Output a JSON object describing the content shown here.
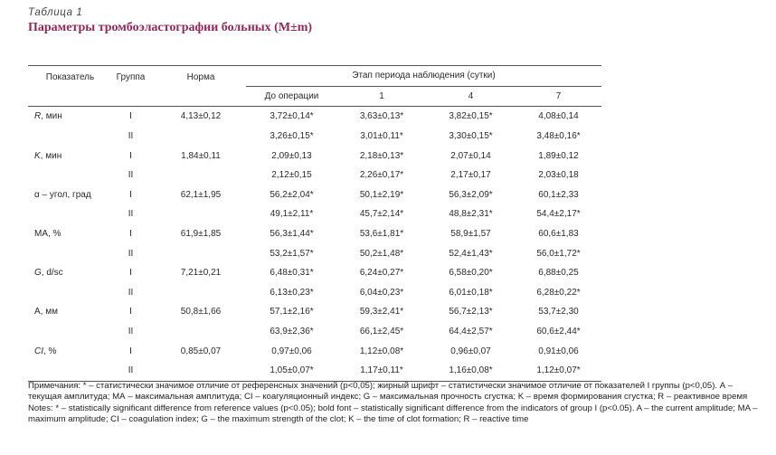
{
  "caption": {
    "label": "Таблица 1",
    "title": "Параметры тромбоэластографии больных (M±m)"
  },
  "header": {
    "param": "Показатель",
    "group": "Группа",
    "norm": "Норма",
    "stage": "Этап периода наблюдения (сутки)",
    "stages": [
      "До операции",
      "1",
      "4",
      "7"
    ]
  },
  "rows": [
    {
      "param": "R, мин",
      "italic_part": "R",
      "rest": ", мин",
      "norm": "4,13±0,12",
      "g1": {
        "group": "I",
        "values": [
          "3,72±0,14*",
          "3,63±0,13*",
          "3,82±0,15*",
          "4,08±0,14"
        ],
        "bold": [
          false,
          false,
          false,
          false
        ]
      },
      "g2": {
        "group": "II",
        "values": [
          "3,26±0,15*",
          "3,01±0,11*",
          "3,30±0,15*",
          "3,48±0,16*"
        ],
        "bold": [
          true,
          true,
          true,
          true
        ]
      }
    },
    {
      "param": "K, мин",
      "italic_part": "K",
      "rest": ", мин",
      "norm": "1,84±0,11",
      "g1": {
        "group": "I",
        "values": [
          "2,09±0,13",
          "2,18±0,13*",
          "2,07±0,14",
          "1,89±0,12"
        ],
        "bold": [
          false,
          false,
          false,
          false
        ]
      },
      "g2": {
        "group": "II",
        "values": [
          "2,12±0,15",
          "2,26±0,17*",
          "2,17±0,17",
          "2,03±0,18"
        ],
        "bold": [
          false,
          false,
          false,
          false
        ]
      }
    },
    {
      "param": "α – угол, град",
      "italic_part": "",
      "rest": "α – угол, град",
      "norm": "62,1±1,95",
      "g1": {
        "group": "I",
        "values": [
          "56,2±2,04*",
          "50,1±2,19*",
          "56,3±2,09*",
          "60,1±2,33"
        ],
        "bold": [
          false,
          false,
          false,
          false
        ]
      },
      "g2": {
        "group": "II",
        "values": [
          "49,1±2,11*",
          "45,7±2,14*",
          "48,8±2,31*",
          "54,4±2,17*"
        ],
        "bold": [
          true,
          true,
          true,
          true
        ]
      }
    },
    {
      "param": "МА, %",
      "italic_part": "",
      "rest": "МА, %",
      "norm": "61,9±1,85",
      "g1": {
        "group": "I",
        "values": [
          "56,3±1,44*",
          "53,6±1,81*",
          "58,9±1,57",
          "60,6±1,83"
        ],
        "bold": [
          false,
          false,
          false,
          false
        ]
      },
      "g2": {
        "group": "II",
        "values": [
          "53,2±1,57*",
          "50,2±1,48*",
          "52,4±1,43*",
          "56,0±1,72*"
        ],
        "bold": [
          false,
          false,
          true,
          true
        ]
      }
    },
    {
      "param": "G, d/sc",
      "italic_part": "G",
      "rest": ", d/sc",
      "norm": "7,21±0,21",
      "g1": {
        "group": "I",
        "values": [
          "6,48±0,31*",
          "6,24±0,27*",
          "6,58±0,20*",
          "6,88±0,25"
        ],
        "bold": [
          false,
          false,
          false,
          false
        ]
      },
      "g2": {
        "group": "II",
        "values": [
          "6,13±0,23*",
          "6,04±0,23*",
          "6,01±0,18*",
          "6,28±0,22*"
        ],
        "bold": [
          false,
          false,
          true,
          true
        ]
      }
    },
    {
      "param": "А, мм",
      "italic_part": "",
      "rest": "А, мм",
      "norm": "50,8±1,66",
      "g1": {
        "group": "I",
        "values": [
          "57,1±2,16*",
          "59,3±2,41*",
          "56,7±2,13*",
          "53,7±2,30"
        ],
        "bold": [
          false,
          false,
          false,
          false
        ]
      },
      "g2": {
        "group": "II",
        "values": [
          "63,9±2,36*",
          "66,1±2,45*",
          "64,4±2,57*",
          "60,6±2,44*"
        ],
        "bold": [
          true,
          true,
          true,
          true
        ]
      }
    },
    {
      "param": "CI, %",
      "italic_part": "CI",
      "rest": ", %",
      "norm": "0,85±0,07",
      "g1": {
        "group": "I",
        "values": [
          "0,97±0,06",
          "1,12±0,08*",
          "0,96±0,07",
          "0,91±0,06"
        ],
        "bold": [
          false,
          false,
          false,
          false
        ]
      },
      "g2": {
        "group": "II",
        "values": [
          "1,05±0,07*",
          "1,17±0,11*",
          "1,16±0,08*",
          "1,12±0,07*"
        ],
        "bold": [
          false,
          false,
          true,
          true
        ]
      }
    }
  ],
  "notes": {
    "ru": "Примечания: * – статистически значимое отличие от референсных значений (p<0,05); жирный шрифт – статистически значимое отличие от показателей I группы (p<0,05). А – текущая амплитуда; МА – максимальная амплитуда; CI – коагуляционный индекс; G – максимальная прочность сгустка; K – время формирования сгустка; R – реактивное время",
    "en": "Notes: * – statistically significant difference from reference values (p<0.05); bold font – statistically significant difference from the indicators of group I (p<0.05). A – the current amplitude; MA – maximum amplitude; CI – coagulation index; G – the maximum strength of the clot; K – the time of clot formation; R – reactive time"
  }
}
